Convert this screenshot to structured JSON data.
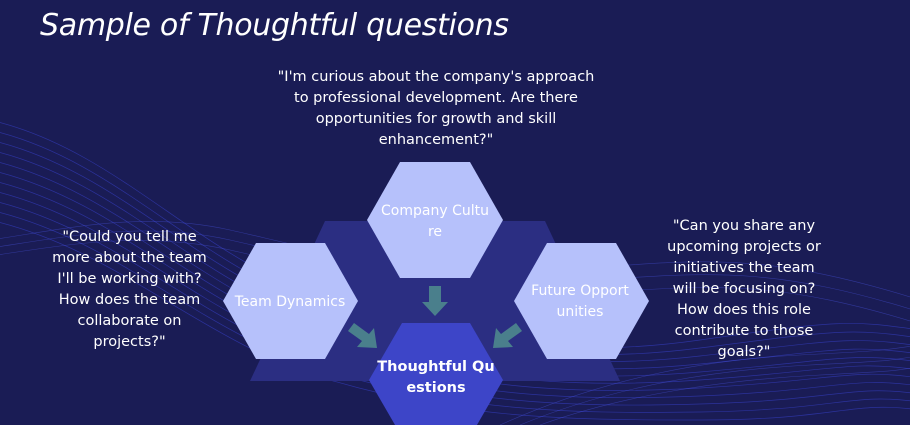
{
  "slide": {
    "title": "Sample of Thoughtful questions"
  },
  "quotes": {
    "top": "\"I'm curious about the company's approach to professional development. Are there opportunities for growth and skill enhancement?\"",
    "left": "\"Could you tell me more about the team I'll be working with? How does the team collaborate on projects?\"",
    "right": "\"Can you share any upcoming projects or initiatives the team will be focusing on? How does this role contribute to those goals?\""
  },
  "diagram": {
    "nodes": {
      "company": "Company Culture",
      "team": "Team Dynamics",
      "future": "Future Opportunities",
      "center": "Thoughtful Questions"
    },
    "colors": {
      "background": "#1a1c55",
      "outer_hex": "#b6c1fb",
      "center_hex": "#3d45c8",
      "arrow": "#4a7f8c",
      "backdrop_hex": "#2b2e82"
    }
  }
}
